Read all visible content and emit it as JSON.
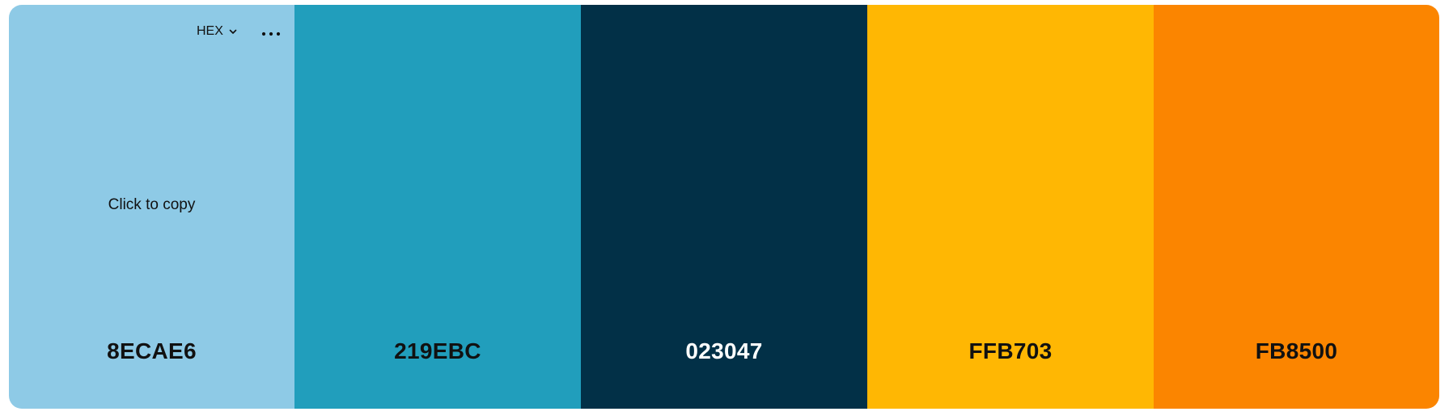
{
  "toolbar": {
    "format_label": "HEX",
    "format_icon": "chevron-down-icon",
    "more_icon": "more-horizontal-icon"
  },
  "hover_hint": "Click to copy",
  "colors": [
    {
      "hex": "8ECAE6",
      "background": "#8ECAE6",
      "text_color": "#111111"
    },
    {
      "hex": "219EBC",
      "background": "#219EBC",
      "text_color": "#111111"
    },
    {
      "hex": "023047",
      "background": "#023047",
      "text_color": "#FFFFFF"
    },
    {
      "hex": "FFB703",
      "background": "#FFB703",
      "text_color": "#111111"
    },
    {
      "hex": "FB8500",
      "background": "#FB8500",
      "text_color": "#111111"
    }
  ]
}
